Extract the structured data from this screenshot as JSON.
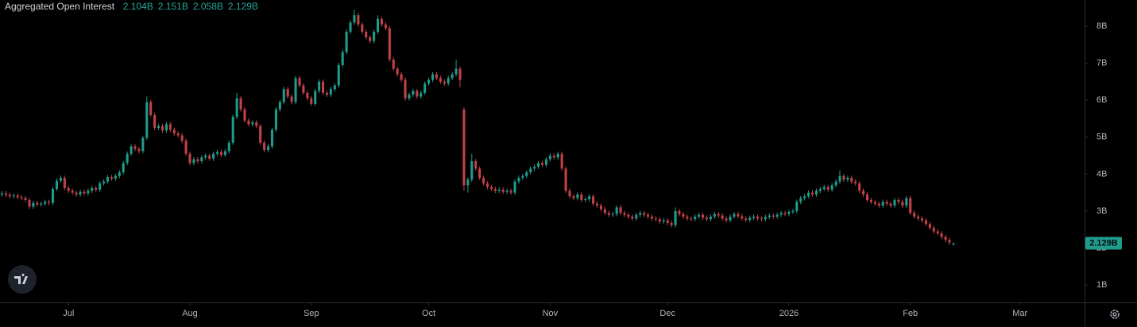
{
  "chart_data": {
    "type": "candlestick",
    "series": [
      {
        "name": "Aggregated Open Interest",
        "up_color": "#1f9c8c",
        "down_color": "#c4414a",
        "ohlc_labels": {
          "open": "2.104B",
          "high": "2.151B",
          "low": "2.058B",
          "close": "2.129B"
        },
        "open": [
          3.45,
          3.48,
          3.44,
          3.4,
          3.42,
          3.38,
          3.35,
          3.3,
          3.12,
          3.22,
          3.18,
          3.2,
          3.25,
          3.22,
          3.6,
          3.82,
          3.9,
          3.62,
          3.55,
          3.5,
          3.45,
          3.52,
          3.48,
          3.55,
          3.62,
          3.58,
          3.75,
          3.8,
          3.92,
          3.88,
          3.95,
          4.05,
          4.3,
          4.55,
          4.75,
          4.68,
          4.62,
          4.98,
          5.95,
          5.6,
          5.25,
          5.3,
          5.18,
          5.35,
          5.2,
          5.1,
          5.05,
          4.9,
          4.55,
          4.3,
          4.4,
          4.35,
          4.45,
          4.5,
          4.42,
          4.55,
          4.6,
          4.52,
          4.62,
          4.85,
          5.55,
          6.05,
          5.75,
          5.45,
          5.35,
          5.4,
          5.3,
          4.85,
          4.65,
          4.75,
          5.2,
          5.75,
          5.95,
          6.3,
          6.1,
          5.95,
          6.6,
          6.4,
          6.2,
          6.05,
          5.9,
          6.25,
          6.5,
          6.2,
          6.15,
          6.3,
          6.4,
          6.95,
          7.3,
          7.85,
          8.1,
          8.3,
          8.05,
          7.85,
          7.7,
          7.6,
          7.85,
          8.2,
          8.05,
          7.95,
          7.1,
          6.85,
          6.7,
          6.55,
          6.05,
          6.15,
          6.25,
          6.1,
          6.2,
          6.45,
          6.55,
          6.7,
          6.6,
          6.5,
          6.45,
          6.6,
          6.7,
          6.85,
          5.75,
          3.7,
          3.85,
          4.35,
          4.15,
          3.9,
          3.75,
          3.65,
          3.6,
          3.55,
          3.58,
          3.52,
          3.55,
          3.5,
          3.8,
          3.9,
          3.95,
          4.05,
          4.15,
          4.2,
          4.3,
          4.25,
          4.4,
          4.5,
          4.45,
          4.55,
          4.15,
          3.55,
          3.4,
          3.35,
          3.45,
          3.3,
          3.32,
          3.4,
          3.2,
          3.15,
          3.05,
          2.95,
          2.9,
          2.92,
          3.1,
          2.95,
          2.9,
          2.85,
          2.8,
          2.9,
          2.95,
          2.9,
          2.85,
          2.8,
          2.78,
          2.72,
          2.75,
          2.68,
          2.62,
          3.0,
          2.92,
          2.85,
          2.8,
          2.78,
          2.85,
          2.9,
          2.82,
          2.78,
          2.85,
          2.92,
          2.88,
          2.8,
          2.75,
          2.85,
          2.92,
          2.86,
          2.8,
          2.76,
          2.82,
          2.85,
          2.8,
          2.78,
          2.84,
          2.88,
          2.85,
          2.9,
          2.95,
          2.92,
          2.98,
          3.0,
          3.25,
          3.35,
          3.4,
          3.5,
          3.45,
          3.55,
          3.6,
          3.65,
          3.58,
          3.7,
          3.8,
          3.95,
          3.85,
          3.9,
          3.8,
          3.75,
          3.55,
          3.45,
          3.3,
          3.25,
          3.2,
          3.15,
          3.25,
          3.2,
          3.15,
          3.3,
          3.25,
          3.15,
          3.35,
          2.95,
          2.85,
          2.8,
          2.75,
          2.65,
          2.55,
          2.45,
          2.4,
          2.3,
          2.22,
          2.104
        ],
        "high": [
          3.54,
          3.54,
          3.5,
          3.48,
          3.48,
          3.44,
          3.41,
          3.36,
          3.28,
          3.28,
          3.26,
          3.31,
          3.31,
          3.66,
          3.88,
          3.96,
          3.96,
          3.68,
          3.61,
          3.56,
          3.58,
          3.58,
          3.61,
          3.68,
          3.68,
          3.81,
          3.86,
          3.98,
          3.98,
          4.01,
          4.11,
          4.36,
          4.61,
          4.81,
          4.81,
          4.74,
          5.04,
          6.1,
          6.01,
          5.66,
          5.36,
          5.36,
          5.41,
          5.41,
          5.26,
          5.16,
          5.11,
          4.96,
          4.61,
          4.46,
          4.46,
          4.51,
          4.56,
          4.56,
          4.61,
          4.66,
          4.66,
          4.68,
          4.91,
          5.61,
          6.2,
          6.11,
          5.81,
          5.51,
          5.46,
          5.46,
          5.36,
          4.91,
          4.81,
          5.26,
          5.81,
          6.01,
          6.36,
          6.36,
          6.16,
          6.66,
          6.66,
          6.46,
          6.26,
          6.11,
          6.31,
          6.56,
          6.56,
          6.26,
          6.36,
          6.46,
          7.01,
          7.36,
          7.91,
          8.16,
          8.45,
          8.36,
          8.11,
          7.91,
          7.76,
          7.91,
          8.3,
          8.26,
          8.11,
          8.01,
          7.16,
          6.91,
          6.76,
          6.61,
          6.21,
          6.31,
          6.31,
          6.26,
          6.51,
          6.61,
          6.76,
          6.76,
          6.66,
          6.56,
          6.66,
          6.76,
          7.1,
          6.91,
          5.8,
          3.91,
          4.55,
          4.41,
          4.21,
          3.96,
          3.81,
          3.71,
          3.66,
          3.64,
          3.64,
          3.61,
          3.61,
          3.86,
          3.96,
          4.01,
          4.11,
          4.21,
          4.26,
          4.36,
          4.36,
          4.46,
          4.56,
          4.56,
          4.61,
          4.61,
          4.21,
          3.61,
          3.46,
          3.51,
          3.51,
          3.38,
          3.46,
          3.46,
          3.26,
          3.21,
          3.11,
          3.01,
          2.98,
          3.16,
          3.16,
          3.01,
          2.96,
          2.91,
          2.96,
          3.01,
          3.01,
          2.96,
          2.91,
          2.86,
          2.84,
          2.81,
          2.81,
          2.74,
          3.1,
          3.06,
          2.98,
          2.91,
          2.86,
          2.91,
          2.96,
          2.96,
          2.88,
          2.91,
          2.98,
          2.98,
          2.94,
          2.86,
          2.91,
          2.98,
          2.98,
          2.92,
          2.86,
          2.88,
          2.91,
          2.91,
          2.86,
          2.9,
          2.94,
          2.94,
          2.96,
          3.01,
          3.01,
          3.04,
          3.06,
          3.31,
          3.41,
          3.46,
          3.56,
          3.56,
          3.61,
          3.66,
          3.71,
          3.71,
          3.76,
          3.86,
          4.1,
          4.01,
          3.96,
          3.96,
          3.86,
          3.81,
          3.61,
          3.51,
          3.36,
          3.31,
          3.26,
          3.31,
          3.31,
          3.26,
          3.36,
          3.36,
          3.31,
          3.41,
          3.41,
          3.01,
          2.91,
          2.86,
          2.81,
          2.71,
          2.61,
          2.51,
          2.46,
          2.36,
          2.28,
          2.151
        ],
        "low": [
          3.39,
          3.38,
          3.34,
          3.34,
          3.32,
          3.29,
          3.24,
          3.06,
          3.06,
          3.12,
          3.12,
          3.14,
          3.16,
          3.16,
          3.54,
          3.76,
          3.56,
          3.49,
          3.44,
          3.39,
          3.39,
          3.42,
          3.42,
          3.49,
          3.52,
          3.52,
          3.69,
          3.74,
          3.82,
          3.82,
          3.89,
          3.99,
          4.24,
          4.49,
          4.62,
          4.56,
          4.56,
          4.92,
          5.54,
          5.19,
          5.19,
          5.12,
          5.12,
          5.14,
          5.04,
          4.99,
          4.84,
          4.49,
          4.24,
          4.24,
          4.29,
          4.29,
          4.39,
          4.36,
          4.36,
          4.49,
          4.46,
          4.46,
          4.56,
          4.79,
          5.49,
          5.69,
          5.39,
          5.29,
          5.29,
          5.24,
          4.79,
          4.59,
          4.59,
          4.69,
          5.14,
          5.69,
          5.89,
          6.04,
          5.89,
          5.89,
          6.34,
          6.14,
          5.99,
          5.84,
          5.84,
          6.19,
          6.14,
          6.09,
          6.09,
          6.24,
          6.34,
          6.89,
          7.24,
          7.79,
          8.04,
          7.99,
          7.79,
          7.64,
          7.54,
          7.54,
          7.79,
          7.99,
          7.89,
          7.04,
          6.79,
          6.64,
          6.49,
          5.99,
          5.99,
          6.09,
          6.04,
          6.04,
          6.14,
          6.39,
          6.49,
          6.54,
          6.44,
          6.39,
          6.39,
          6.54,
          6.64,
          6.35,
          3.55,
          3.5,
          3.79,
          4.09,
          3.84,
          3.69,
          3.59,
          3.54,
          3.49,
          3.49,
          3.46,
          3.46,
          3.44,
          3.44,
          3.74,
          3.84,
          3.89,
          3.99,
          4.09,
          4.14,
          4.19,
          4.19,
          4.34,
          4.39,
          4.39,
          4.09,
          3.49,
          3.34,
          3.29,
          3.29,
          3.24,
          3.24,
          3.26,
          3.14,
          3.09,
          2.99,
          2.89,
          2.84,
          2.84,
          2.86,
          2.89,
          2.84,
          2.79,
          2.74,
          2.74,
          2.84,
          2.84,
          2.79,
          2.74,
          2.72,
          2.66,
          2.66,
          2.62,
          2.56,
          2.56,
          2.86,
          2.79,
          2.74,
          2.72,
          2.72,
          2.79,
          2.76,
          2.72,
          2.72,
          2.79,
          2.82,
          2.74,
          2.69,
          2.69,
          2.79,
          2.8,
          2.74,
          2.7,
          2.7,
          2.76,
          2.74,
          2.72,
          2.72,
          2.78,
          2.79,
          2.79,
          2.84,
          2.86,
          2.86,
          2.92,
          2.94,
          3.19,
          3.29,
          3.34,
          3.39,
          3.39,
          3.49,
          3.54,
          3.52,
          3.52,
          3.64,
          3.74,
          3.79,
          3.79,
          3.74,
          3.69,
          3.49,
          3.39,
          3.24,
          3.19,
          3.14,
          3.09,
          3.09,
          3.14,
          3.09,
          3.09,
          3.19,
          3.09,
          3.09,
          2.89,
          2.79,
          2.74,
          2.69,
          2.59,
          2.49,
          2.39,
          2.34,
          2.24,
          2.16,
          2.09,
          2.058
        ],
        "close": [
          3.48,
          3.44,
          3.4,
          3.42,
          3.38,
          3.35,
          3.3,
          3.12,
          3.22,
          3.18,
          3.2,
          3.25,
          3.22,
          3.6,
          3.82,
          3.9,
          3.62,
          3.55,
          3.5,
          3.45,
          3.52,
          3.48,
          3.55,
          3.62,
          3.58,
          3.75,
          3.8,
          3.92,
          3.88,
          3.95,
          4.05,
          4.3,
          4.55,
          4.75,
          4.68,
          4.62,
          4.98,
          5.95,
          5.6,
          5.25,
          5.3,
          5.18,
          5.35,
          5.2,
          5.1,
          5.05,
          4.9,
          4.55,
          4.3,
          4.4,
          4.35,
          4.45,
          4.5,
          4.42,
          4.55,
          4.6,
          4.52,
          4.62,
          4.85,
          5.55,
          6.05,
          5.75,
          5.45,
          5.35,
          5.4,
          5.3,
          4.85,
          4.65,
          4.75,
          5.2,
          5.75,
          5.95,
          6.3,
          6.1,
          5.95,
          6.6,
          6.4,
          6.2,
          6.05,
          5.9,
          6.25,
          6.5,
          6.2,
          6.15,
          6.3,
          6.4,
          6.95,
          7.3,
          7.85,
          8.1,
          8.3,
          8.05,
          7.85,
          7.7,
          7.6,
          7.85,
          8.2,
          8.05,
          7.95,
          7.1,
          6.85,
          6.7,
          6.55,
          6.05,
          6.15,
          6.25,
          6.1,
          6.2,
          6.45,
          6.55,
          6.7,
          6.6,
          6.5,
          6.45,
          6.6,
          6.7,
          6.85,
          6.55,
          3.7,
          3.85,
          4.35,
          4.15,
          3.9,
          3.75,
          3.65,
          3.6,
          3.55,
          3.58,
          3.52,
          3.55,
          3.5,
          3.8,
          3.9,
          3.95,
          4.05,
          4.15,
          4.2,
          4.3,
          4.25,
          4.4,
          4.5,
          4.45,
          4.55,
          4.15,
          3.55,
          3.4,
          3.35,
          3.45,
          3.3,
          3.32,
          3.4,
          3.2,
          3.15,
          3.05,
          2.95,
          2.9,
          2.92,
          3.1,
          2.95,
          2.9,
          2.85,
          2.8,
          2.9,
          2.95,
          2.9,
          2.85,
          2.8,
          2.78,
          2.72,
          2.75,
          2.68,
          2.62,
          3.0,
          2.92,
          2.85,
          2.8,
          2.78,
          2.85,
          2.9,
          2.82,
          2.78,
          2.85,
          2.92,
          2.88,
          2.8,
          2.75,
          2.85,
          2.92,
          2.86,
          2.8,
          2.76,
          2.82,
          2.85,
          2.8,
          2.78,
          2.84,
          2.88,
          2.85,
          2.9,
          2.95,
          2.92,
          2.98,
          3.0,
          3.25,
          3.35,
          3.4,
          3.5,
          3.45,
          3.55,
          3.6,
          3.65,
          3.58,
          3.7,
          3.8,
          3.95,
          3.85,
          3.9,
          3.8,
          3.75,
          3.55,
          3.45,
          3.3,
          3.25,
          3.2,
          3.15,
          3.25,
          3.2,
          3.15,
          3.3,
          3.25,
          3.15,
          3.35,
          2.95,
          2.85,
          2.8,
          2.75,
          2.65,
          2.55,
          2.45,
          2.4,
          2.3,
          2.22,
          2.15,
          2.129
        ]
      }
    ],
    "xlim": [
      -0.5,
      276.5
    ],
    "xticks": [
      {
        "value": 17,
        "label": "Jul"
      },
      {
        "value": 48,
        "label": "Aug"
      },
      {
        "value": 79,
        "label": "Sep"
      },
      {
        "value": 109,
        "label": "Oct"
      },
      {
        "value": 140,
        "label": "Nov"
      },
      {
        "value": 170,
        "label": "Dec"
      },
      {
        "value": 201,
        "label": "2026"
      },
      {
        "value": 232,
        "label": "Feb"
      },
      {
        "value": 260,
        "label": "Mar"
      }
    ],
    "ylim": [
      0.53,
      8.71
    ],
    "yticks": [
      {
        "value": 1,
        "label": "1B"
      },
      {
        "value": 2,
        "label": "2B"
      },
      {
        "value": 3,
        "label": "3B"
      },
      {
        "value": 4,
        "label": "4B"
      },
      {
        "value": 5,
        "label": "5B"
      },
      {
        "value": 6,
        "label": "6B"
      },
      {
        "value": 7,
        "label": "7B"
      },
      {
        "value": 8,
        "label": "8B"
      }
    ],
    "grid": false
  }
}
